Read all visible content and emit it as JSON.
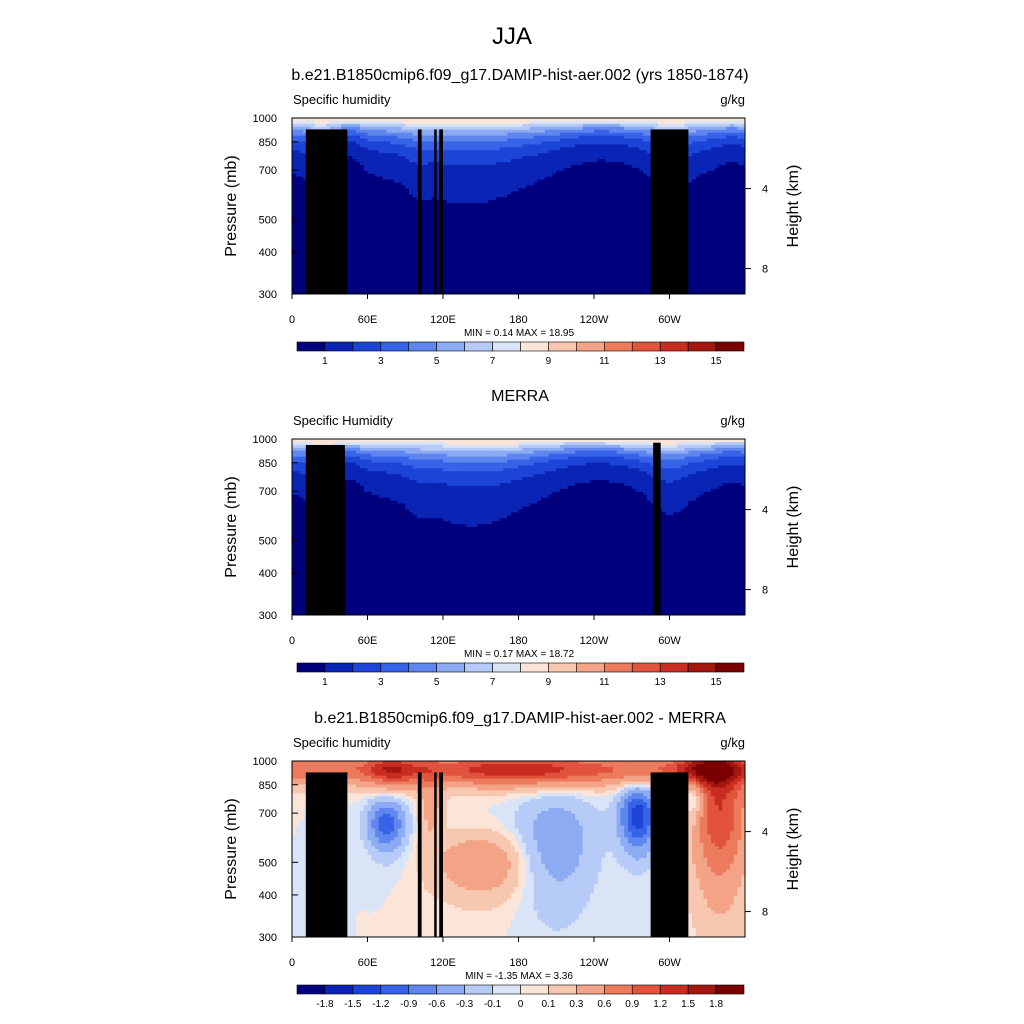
{
  "figure": {
    "title": "JJA"
  },
  "colors": {
    "abs_palette": [
      "#00007f",
      "#0a24b5",
      "#1c44d6",
      "#3763e8",
      "#5f86ef",
      "#8cabf3",
      "#b6cbf7",
      "#dae4f7",
      "#fbe5d8",
      "#f8c7b0",
      "#f3a386",
      "#ec7a5c",
      "#e2533d",
      "#c92d21",
      "#a3170f",
      "#7a0000"
    ],
    "diff_palette": [
      "#00007f",
      "#0a24b5",
      "#1c44d6",
      "#3763e8",
      "#5f86ef",
      "#8cabf3",
      "#b6cbf7",
      "#dae4f7",
      "#fbe5d8",
      "#f8c7b0",
      "#f3a386",
      "#ec7a5c",
      "#e2533d",
      "#c92d21",
      "#a3170f",
      "#7a0000"
    ]
  },
  "chart_data": [
    {
      "type": "heatmap",
      "title": "b.e21.B1850cmip6.f09_g17.DAMIP-hist-aer.002 (yrs 1850-1874)",
      "left_label": "Specific humidity",
      "units": "g/kg",
      "ylabel": "Pressure (mb)",
      "y2label": "Height (km)",
      "y_ticks": [
        "300",
        "400",
        "500",
        "700",
        "850",
        "1000"
      ],
      "y_tick_values": [
        300,
        400,
        500,
        700,
        850,
        1000
      ],
      "y2_ticks": [
        "8",
        "4"
      ],
      "y2_tick_values": [
        8,
        4
      ],
      "x_ticks": [
        "0",
        "60E",
        "120E",
        "180",
        "120W",
        "60W"
      ],
      "x_tick_values": [
        0,
        60,
        120,
        180,
        240,
        300
      ],
      "xlim": [
        0,
        360
      ],
      "ylim": [
        1000,
        300
      ],
      "stats": "MIN =   0.14  MAX =  18.95",
      "colorbar_labels": [
        "1",
        "3",
        "5",
        "7",
        "9",
        "11",
        "13",
        "15"
      ],
      "colorbar_levels": [
        1,
        3,
        5,
        7,
        9,
        11,
        13,
        15
      ]
    },
    {
      "type": "heatmap",
      "title": "MERRA",
      "left_label": "Specific Humidity",
      "units": "g/kg",
      "ylabel": "Pressure (mb)",
      "y2label": "Height (km)",
      "y_ticks": [
        "300",
        "400",
        "500",
        "700",
        "850",
        "1000"
      ],
      "y_tick_values": [
        300,
        400,
        500,
        700,
        850,
        1000
      ],
      "y2_ticks": [
        "8",
        "4"
      ],
      "y2_tick_values": [
        8,
        4
      ],
      "x_ticks": [
        "0",
        "60E",
        "120E",
        "180",
        "120W",
        "60W"
      ],
      "x_tick_values": [
        0,
        60,
        120,
        180,
        240,
        300
      ],
      "xlim": [
        0,
        360
      ],
      "ylim": [
        1000,
        300
      ],
      "stats": "MIN =   0.17  MAX =  18.72",
      "colorbar_labels": [
        "1",
        "3",
        "5",
        "7",
        "9",
        "11",
        "13",
        "15"
      ],
      "colorbar_levels": [
        1,
        3,
        5,
        7,
        9,
        11,
        13,
        15
      ]
    },
    {
      "type": "heatmap",
      "title": "b.e21.B1850cmip6.f09_g17.DAMIP-hist-aer.002 - MERRA",
      "left_label": "Specific humidity",
      "units": "g/kg",
      "ylabel": "Pressure (mb)",
      "y2label": "Height (km)",
      "y_ticks": [
        "300",
        "400",
        "500",
        "700",
        "850",
        "1000"
      ],
      "y_tick_values": [
        300,
        400,
        500,
        700,
        850,
        1000
      ],
      "y2_ticks": [
        "8",
        "4"
      ],
      "y2_tick_values": [
        8,
        4
      ],
      "x_ticks": [
        "0",
        "60E",
        "120E",
        "180",
        "120W",
        "60W"
      ],
      "x_tick_values": [
        0,
        60,
        120,
        180,
        240,
        300
      ],
      "xlim": [
        0,
        360
      ],
      "ylim": [
        1000,
        300
      ],
      "stats": "MIN =  -1.35  MAX =   3.36",
      "colorbar_labels": [
        "-1.8",
        "-1.5",
        "-1.2",
        "-0.9",
        "-0.6",
        "-0.3",
        "-0.1",
        "0",
        "0.1",
        "0.3",
        "0.6",
        "0.9",
        "1.2",
        "1.5",
        "1.8"
      ],
      "colorbar_levels": [
        -1.8,
        -1.5,
        -1.2,
        -0.9,
        -0.6,
        -0.3,
        -0.1,
        0,
        0.1,
        0.3,
        0.6,
        0.9,
        1.2,
        1.5,
        1.8
      ]
    }
  ]
}
